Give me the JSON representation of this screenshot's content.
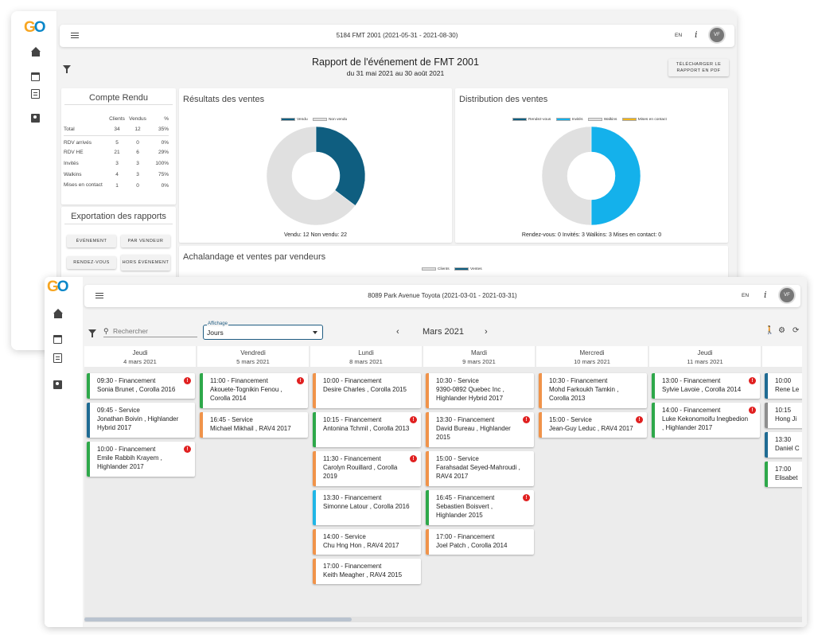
{
  "colors": {
    "vendu": "#0f5e80",
    "non_vendu": "#e0e0e0",
    "rendezvous": "#0f5e80",
    "invites": "#14b1eb",
    "walkins": "#e0e0e0",
    "mises_en_contact": "#f0b41c",
    "financement": "#2ea84a",
    "service": "#1f6b93",
    "orange": "#f0934a",
    "cyan": "#21b6e6",
    "grey": "#8e8e8e",
    "alert": "#e02020"
  },
  "report": {
    "top_title": "5184 FMT 2001 (2021-05-31 - 2021-08-30)",
    "lang": "EN",
    "avatar": "VF",
    "title": "Rapport de l'événement de FMT 2001",
    "subtitle": "du 31 mai 2021 au 30 août 2021",
    "download_btn": "Télécharger le rapport en PDF",
    "compte_rendu": {
      "title": "Compte Rendu",
      "headers": [
        "Clients",
        "Vendus",
        "%"
      ],
      "rows": [
        {
          "label": "Total",
          "clients": "34",
          "vendus": "12",
          "pct": "35%"
        },
        {
          "label": "RDV arrivés",
          "clients": "5",
          "vendus": "0",
          "pct": "0%"
        },
        {
          "label": "RDV HE",
          "clients": "21",
          "vendus": "6",
          "pct": "29%"
        },
        {
          "label": "Invités",
          "clients": "3",
          "vendus": "3",
          "pct": "100%"
        },
        {
          "label": "Walkins",
          "clients": "4",
          "vendus": "3",
          "pct": "75%"
        },
        {
          "label": "Mises en contact",
          "clients": "1",
          "vendus": "0",
          "pct": "0%"
        }
      ]
    },
    "export": {
      "title": "Exportation des rapports",
      "buttons": [
        "Événement",
        "Par vendeur",
        "Rendez-vous",
        "Hors événement"
      ]
    },
    "results": {
      "title": "Résultats des ventes",
      "legend": [
        "Vendu",
        "Non vendu"
      ],
      "footer": "Vendu: 12  Non vendu: 22"
    },
    "distribution": {
      "title": "Distribution des ventes",
      "legend": [
        "Rendez-vous",
        "Invités",
        "Walkins",
        "Mises en contact"
      ],
      "footer": "Rendez-vous: 0  Invités: 3  Walkins: 3  Mises en contact: 0"
    },
    "traffic": {
      "title": "Achalandage et ventes par vendeurs",
      "legend": [
        "Clients",
        "Ventes"
      ]
    }
  },
  "chart_data": [
    {
      "type": "pie",
      "title": "Résultats des ventes",
      "labels": [
        "Vendu",
        "Non vendu"
      ],
      "values": [
        12,
        22
      ]
    },
    {
      "type": "pie",
      "title": "Distribution des ventes",
      "labels": [
        "Rendez-vous",
        "Invités",
        "Walkins",
        "Mises en contact"
      ],
      "values": [
        0,
        3,
        3,
        0
      ]
    }
  ],
  "calendar": {
    "top_title": "8089 Park Avenue Toyota (2021-03-01 - 2021-03-31)",
    "lang": "EN",
    "avatar": "VF",
    "search_placeholder": "Rechercher",
    "display_label": "Affichage",
    "display_value": "Jours",
    "month": "Mars 2021",
    "prev": "‹",
    "next": "›",
    "columns": [
      {
        "day": "Jeudi",
        "date": "4 mars 2021",
        "appts": [
          {
            "time": "09:30",
            "type": "Financement",
            "text": "Sonia Brunet , Corolla 2016",
            "color": "#2ea84a",
            "alert": true
          },
          {
            "time": "09:45",
            "type": "Service",
            "text": "Jonathan Boivin , Highlander Hybrid 2017",
            "color": "#1f6b93",
            "alert": false
          },
          {
            "time": "10:00",
            "type": "Financement",
            "text": "Emile Rabbih Krayem , Highlander 2017",
            "color": "#2ea84a",
            "alert": true
          }
        ]
      },
      {
        "day": "Vendredi",
        "date": "5 mars 2021",
        "appts": [
          {
            "time": "11:00",
            "type": "Financement",
            "text": "Akouete-Tognikin Fenou , Corolla 2014",
            "color": "#2ea84a",
            "alert": true
          },
          {
            "time": "16:45",
            "type": "Service",
            "text": "Michael Mikhail , RAV4 2017",
            "color": "#f0934a",
            "alert": false
          }
        ]
      },
      {
        "day": "Lundi",
        "date": "8 mars 2021",
        "appts": [
          {
            "time": "10:00",
            "type": "Financement",
            "text": "Desire Charles , Corolla 2015",
            "color": "#f0934a",
            "alert": false
          },
          {
            "time": "10:15",
            "type": "Financement",
            "text": "Antonina Tchmil , Corolla 2013",
            "color": "#2ea84a",
            "alert": true
          },
          {
            "time": "11:30",
            "type": "Financement",
            "text": "Carolyn Rouillard , Corolla 2019",
            "color": "#f0934a",
            "alert": true
          },
          {
            "time": "13:30",
            "type": "Financement",
            "text": "Simonne Latour , Corolla 2016",
            "color": "#21b6e6",
            "alert": false
          },
          {
            "time": "14:00",
            "type": "Service",
            "text": "Chu Hng Hon , RAV4 2017",
            "color": "#f0934a",
            "alert": false
          },
          {
            "time": "17:00",
            "type": "Financement",
            "text": "Keith Meagher , RAV4 2015",
            "color": "#f0934a",
            "alert": false
          }
        ]
      },
      {
        "day": "Mardi",
        "date": "9 mars 2021",
        "appts": [
          {
            "time": "10:30",
            "type": "Service",
            "text": "9390-0892 Quebec Inc , Highlander Hybrid 2017",
            "color": "#f0934a",
            "alert": false
          },
          {
            "time": "13:30",
            "type": "Financement",
            "text": "David Bureau , Highlander 2015",
            "color": "#f0934a",
            "alert": true
          },
          {
            "time": "15:00",
            "type": "Service",
            "text": "Farahsadat Seyed-Mahroudi , RAV4 2017",
            "color": "#f0934a",
            "alert": false
          },
          {
            "time": "16:45",
            "type": "Financement",
            "text": "Sebastien Boisvert , Highlander 2015",
            "color": "#2ea84a",
            "alert": true
          },
          {
            "time": "17:00",
            "type": "Financement",
            "text": "Joel Patch , Corolla 2014",
            "color": "#f0934a",
            "alert": false
          }
        ]
      },
      {
        "day": "Mercredi",
        "date": "10 mars 2021",
        "appts": [
          {
            "time": "10:30",
            "type": "Financement",
            "text": "Mohd Farkoukh Tamkin , Corolla 2013",
            "color": "#f0934a",
            "alert": false
          },
          {
            "time": "15:00",
            "type": "Service",
            "text": "Jean-Guy Leduc , RAV4 2017",
            "color": "#f0934a",
            "alert": true
          }
        ]
      },
      {
        "day": "Jeudi",
        "date": "11 mars 2021",
        "appts": [
          {
            "time": "13:00",
            "type": "Financement",
            "text": "Sylvie Lavoie , Corolla 2014",
            "color": "#2ea84a",
            "alert": true
          },
          {
            "time": "14:00",
            "type": "Financement",
            "text": "Luke Kekonomoifu Inegbedion , Highlander 2017",
            "color": "#2ea84a",
            "alert": true
          }
        ]
      },
      {
        "day": "",
        "date": "",
        "appts": [
          {
            "time": "10:00",
            "type": "",
            "text": "Rene Le",
            "color": "#1f6b93",
            "alert": false
          },
          {
            "time": "10:15",
            "type": "",
            "text": "Hong Ji",
            "color": "#8e8e8e",
            "alert": false
          },
          {
            "time": "13:30",
            "type": "",
            "text": "Daniel C",
            "color": "#1f6b93",
            "alert": false
          },
          {
            "time": "17:00",
            "type": "",
            "text": "Elisabet",
            "color": "#2ea84a",
            "alert": false
          }
        ]
      }
    ]
  }
}
